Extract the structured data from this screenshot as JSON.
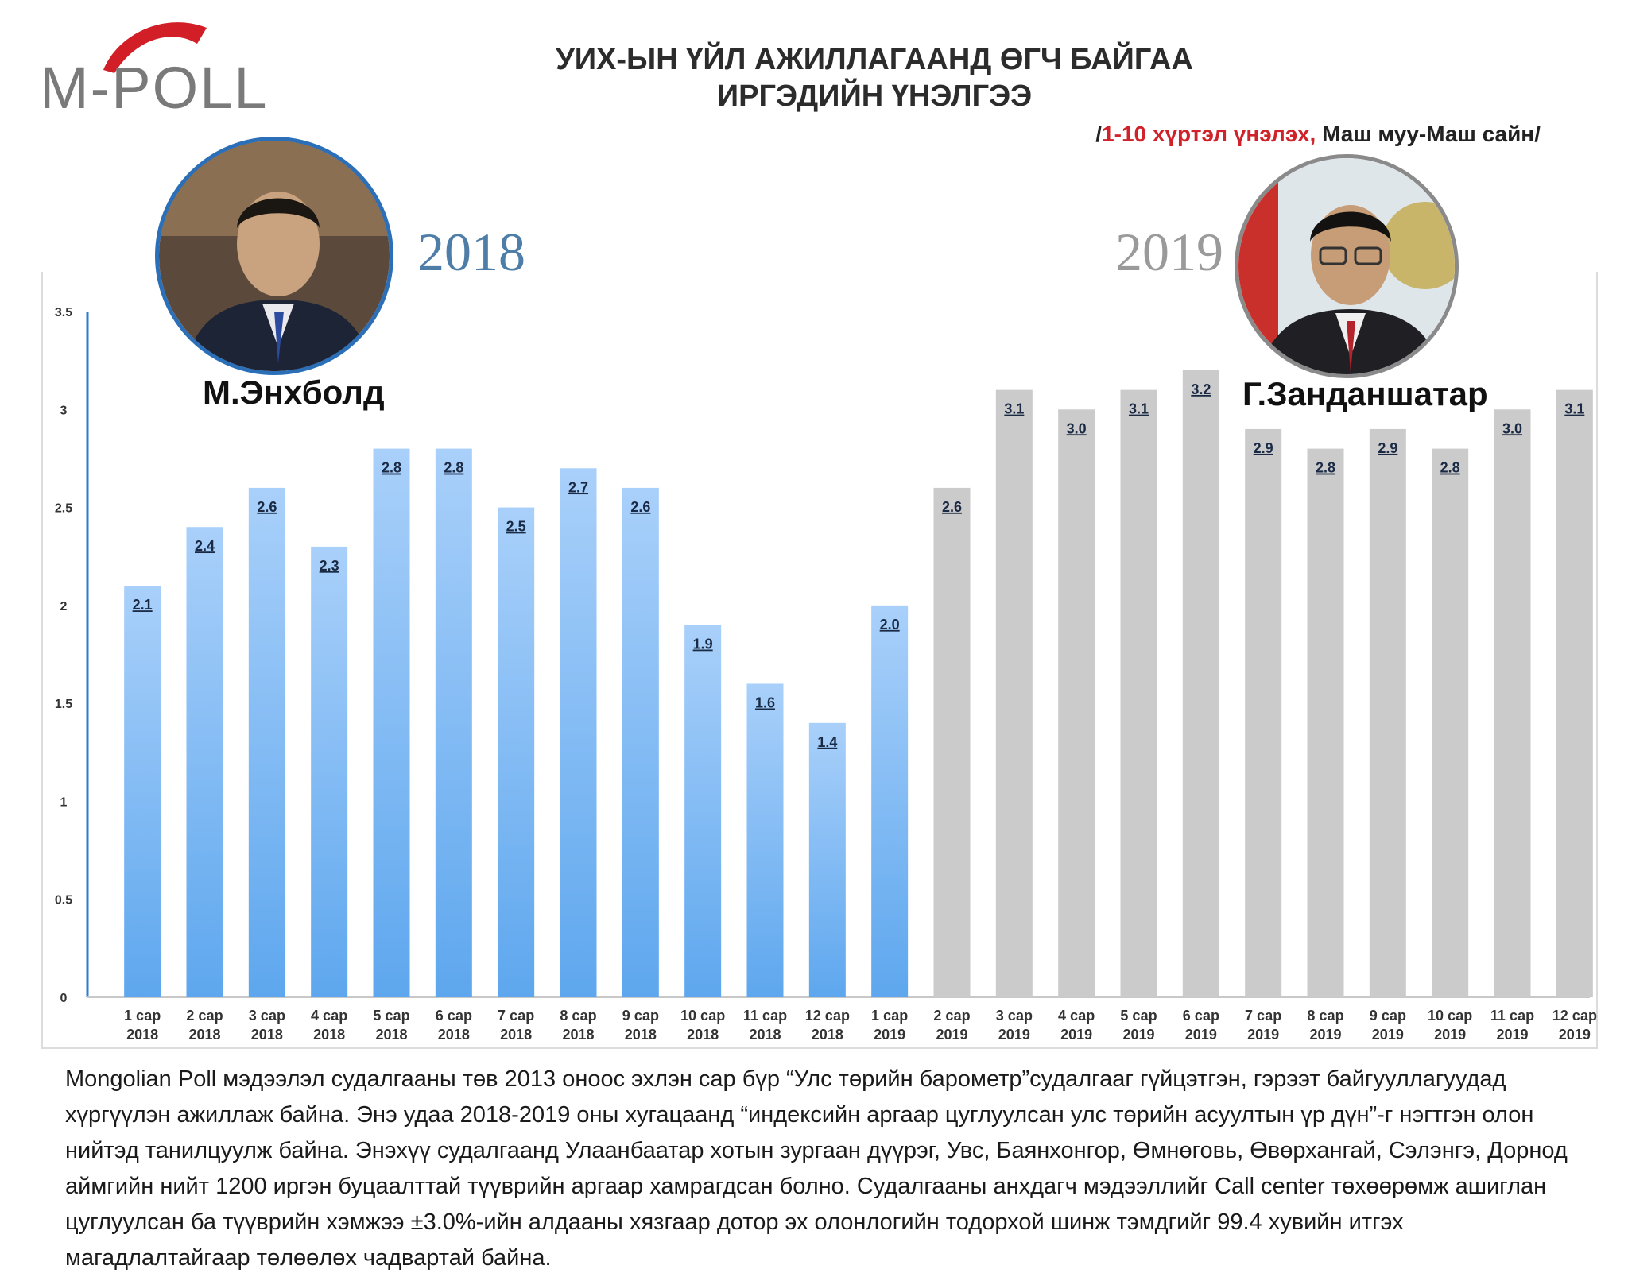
{
  "logo": {
    "text": "M-POLL"
  },
  "title_line1": "УИХ-ЫН ҮЙЛ АЖИЛЛАГААНД ӨГЧ БАЙГАА",
  "title_line2": "ИРГЭДИЙН ҮНЭЛГЭЭ",
  "subtitle": {
    "prefix": "/",
    "red": "1-10 хүртэл үнэлэх, ",
    "rest": "Маш муу-Маш сайн/"
  },
  "years": {
    "left": "2018",
    "right": "2019"
  },
  "persons": [
    {
      "name": "М.Энхболд"
    },
    {
      "name": "Г.Занданшатар"
    }
  ],
  "colors": {
    "series_2018": "#5ea7ee",
    "series_2018_top": "#a9d0fa",
    "series_2019": "#cbcbcb",
    "axis_line": "#2b7bd0"
  },
  "chart_data": {
    "type": "bar",
    "ylim": [
      0,
      3.5
    ],
    "yticks": [
      "0",
      "0.5",
      "1",
      "1.5",
      "2",
      "2.5",
      "3",
      "3.5"
    ],
    "categories": [
      [
        "1 сар",
        "2018"
      ],
      [
        "2 сар",
        "2018"
      ],
      [
        "3 сар",
        "2018"
      ],
      [
        "4 сар",
        "2018"
      ],
      [
        "5 сар",
        "2018"
      ],
      [
        "6 сар",
        "2018"
      ],
      [
        "7 сар",
        "2018"
      ],
      [
        "8 сар",
        "2018"
      ],
      [
        "9 сар",
        "2018"
      ],
      [
        "10 сар",
        "2018"
      ],
      [
        "11 сар",
        "2018"
      ],
      [
        "12 сар",
        "2018"
      ],
      [
        "1 сар",
        "2019"
      ],
      [
        "2 сар",
        "2019"
      ],
      [
        "3 сар",
        "2019"
      ],
      [
        "4 сар",
        "2019"
      ],
      [
        "5 сар",
        "2019"
      ],
      [
        "6 сар",
        "2019"
      ],
      [
        "7 сар",
        "2019"
      ],
      [
        "8 сар",
        "2019"
      ],
      [
        "9 сар",
        "2019"
      ],
      [
        "10 сар",
        "2019"
      ],
      [
        "11 сар",
        "2019"
      ],
      [
        "12 сар",
        "2019"
      ]
    ],
    "values": [
      2.1,
      2.4,
      2.6,
      2.3,
      2.8,
      2.8,
      2.5,
      2.7,
      2.6,
      1.9,
      1.6,
      1.4,
      2.0,
      2.6,
      3.1,
      3.0,
      3.1,
      3.2,
      2.9,
      2.8,
      2.9,
      2.8,
      3.0,
      3.1
    ],
    "value_labels": [
      "2.1",
      "2.4",
      "2.6",
      "2.3",
      "2.8",
      "2.8",
      "2.5",
      "2.7",
      "2.6",
      "1.9",
      "1.6",
      "1.4",
      "2.0",
      "2.6",
      "3.1",
      "3.0",
      "3.1",
      "3.2",
      "2.9",
      "2.8",
      "2.9",
      "2.8",
      "3.0",
      "3.1"
    ],
    "series_of_bar": [
      "blue",
      "blue",
      "blue",
      "blue",
      "blue",
      "blue",
      "blue",
      "blue",
      "blue",
      "blue",
      "blue",
      "blue",
      "blue",
      "gray",
      "gray",
      "gray",
      "gray",
      "gray",
      "gray",
      "gray",
      "gray",
      "gray",
      "gray",
      "gray"
    ]
  },
  "note": "Mongolian Poll мэдээлэл судалгааны төв 2013 оноос эхлэн сар бүр “Улс төрийн барометр”судалгааг гүйцэтгэн, гэрээт байгууллагуудад хүргүүлэн ажиллаж байна. Энэ удаа 2018-2019 оны хугацаанд “индексийн аргаар цуглуулсан улс төрийн асуултын үр дүн”-г нэгтгэн олон нийтэд танилцуулж байна.  Энэхүү судалгаанд Улаанбаатар хотын зургаан дүүрэг, Увс, Баянхонгор, Өмнөговь, Өвөрхангай, Сэлэнгэ, Дорнод аймгийн нийт 1200 иргэн буцаалттай түүврийн аргаар хамрагдсан болно. Судалгааны анхдагч мэдээллийг Call center төхөөрөмж ашиглан цуглуулсан ба түүврийн хэмжээ ±3.0%-ийн алдааны хязгаар дотор эх олонлогийн тодорхой шинж тэмдгийг 99.4 хувийн итгэх магадлалтайгаар төлөөлөх чадвартай байна."
}
